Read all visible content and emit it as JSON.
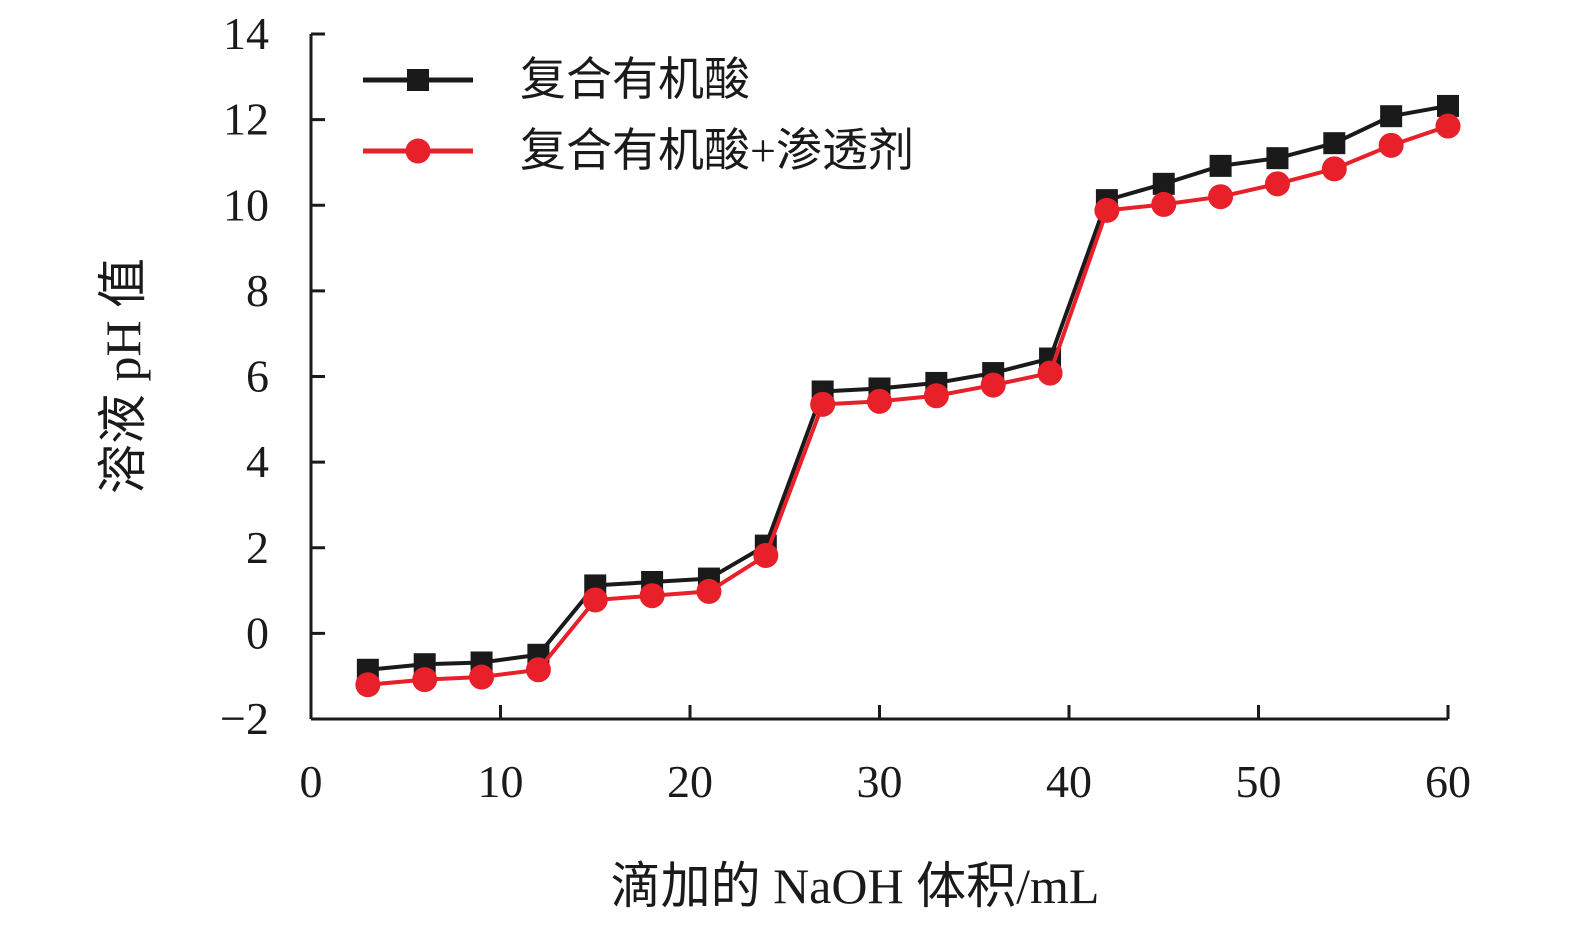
{
  "chart_data": {
    "type": "line",
    "xlabel": "滴加的 NaOH 体积/mL",
    "ylabel": "溶液 pH 值",
    "xlim": [
      0,
      60
    ],
    "ylim": [
      -2,
      14
    ],
    "xticks": [
      0,
      10,
      20,
      30,
      40,
      50,
      60
    ],
    "yticks": [
      -2,
      0,
      2,
      4,
      6,
      8,
      10,
      12,
      14
    ],
    "ytick_labels": [
      "−2",
      "0",
      "2",
      "4",
      "6",
      "8",
      "10",
      "12",
      "14"
    ],
    "grid": false,
    "legend_position": "top-left",
    "x": [
      3,
      6,
      9,
      12,
      15,
      18,
      21,
      24,
      27,
      30,
      33,
      36,
      39,
      42,
      45,
      48,
      51,
      54,
      57,
      60
    ],
    "series": [
      {
        "name": "复合有机酸",
        "color": "#1a1a1a",
        "marker": "square",
        "values": [
          -0.85,
          -0.72,
          -0.68,
          -0.5,
          1.12,
          1.2,
          1.28,
          2.05,
          5.65,
          5.72,
          5.85,
          6.08,
          6.42,
          10.12,
          10.5,
          10.92,
          11.1,
          11.45,
          12.08,
          12.32
        ]
      },
      {
        "name": "复合有机酸+渗透剂",
        "color": "#e8202a",
        "marker": "circle",
        "values": [
          -1.2,
          -1.08,
          -1.02,
          -0.85,
          0.78,
          0.88,
          0.98,
          1.82,
          5.35,
          5.42,
          5.55,
          5.8,
          6.08,
          9.88,
          10.02,
          10.2,
          10.5,
          10.85,
          11.4,
          11.85
        ]
      }
    ]
  }
}
